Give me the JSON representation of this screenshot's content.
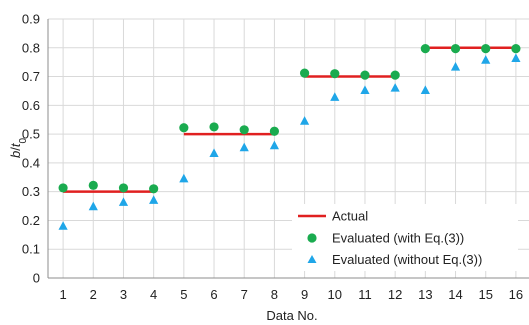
{
  "chart_data": {
    "type": "scatter",
    "xlabel": "Data No.",
    "ylabel": {
      "main": "b",
      "sep": "/",
      "var": "t",
      "sub": "0"
    },
    "x": [
      1,
      2,
      3,
      4,
      5,
      6,
      7,
      8,
      9,
      10,
      11,
      12,
      13,
      14,
      15,
      16
    ],
    "xlim": [
      1,
      16
    ],
    "ylim": [
      0,
      0.9
    ],
    "yticks": [
      "0",
      "0.1",
      "0.2",
      "0.3",
      "0.4",
      "0.5",
      "0.6",
      "0.7",
      "0.8",
      "0.9"
    ],
    "xticks": [
      "1",
      "2",
      "3",
      "4",
      "5",
      "6",
      "7",
      "8",
      "9",
      "10",
      "11",
      "12",
      "13",
      "14",
      "15",
      "16"
    ],
    "grid": true,
    "legend_position": "bottom-right",
    "series": [
      {
        "name": "Actual",
        "kind": "line-segments",
        "color": "#e02020",
        "segments": [
          {
            "x": [
              1,
              4
            ],
            "y": 0.3
          },
          {
            "x": [
              5,
              8
            ],
            "y": 0.5
          },
          {
            "x": [
              9,
              12
            ],
            "y": 0.7
          },
          {
            "x": [
              13,
              16
            ],
            "y": 0.8
          }
        ]
      },
      {
        "name": "Evaluated (with Eq.(3))",
        "kind": "circle",
        "color": "#1aab4f",
        "values": [
          0.313,
          0.322,
          0.313,
          0.31,
          0.522,
          0.525,
          0.515,
          0.51,
          0.712,
          0.71,
          0.705,
          0.705,
          0.797,
          0.797,
          0.797,
          0.797
        ]
      },
      {
        "name": "Evaluated (without Eq.(3))",
        "kind": "triangle",
        "color": "#1fa6e8",
        "values": [
          0.18,
          0.248,
          0.263,
          0.27,
          0.345,
          0.433,
          0.453,
          0.46,
          0.545,
          0.628,
          0.652,
          0.66,
          0.652,
          0.733,
          0.757,
          0.763
        ]
      }
    ]
  }
}
